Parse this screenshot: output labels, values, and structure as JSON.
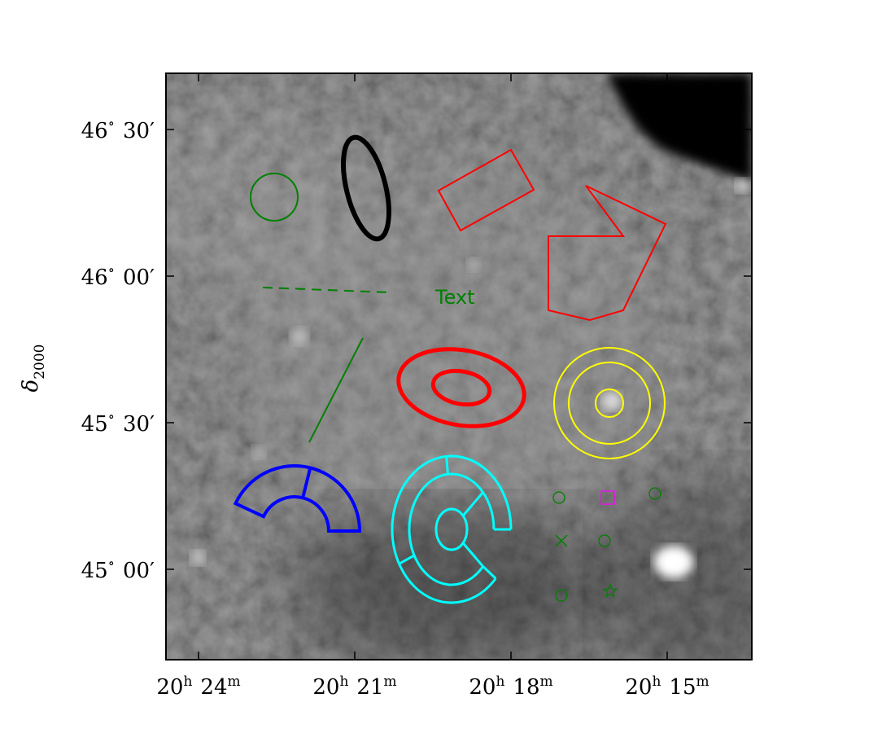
{
  "chart_data": {
    "type": "image",
    "title": "",
    "xlabel": "",
    "ylabel_symbol": "δ",
    "ylabel_sub": "2000",
    "colormap": "gray",
    "x_ticks": [
      {
        "h": "20",
        "hu": "h",
        "m": "24",
        "mu": "m"
      },
      {
        "h": "20",
        "hu": "h",
        "m": "21",
        "mu": "m"
      },
      {
        "h": "20",
        "hu": "h",
        "m": "18",
        "mu": "m"
      },
      {
        "h": "20",
        "hu": "h",
        "m": "15",
        "mu": "m"
      }
    ],
    "y_ticks": [
      {
        "deg": "46",
        "min": "30"
      },
      {
        "deg": "46",
        "min": "00"
      },
      {
        "deg": "45",
        "min": "30"
      },
      {
        "deg": "45",
        "min": "00"
      }
    ],
    "regions": {
      "circle_color": "#008000",
      "ellipse_color": "#000000",
      "box_color": "#ff0000",
      "polygon_color": "#ff0000",
      "line_color": "#008000",
      "text_label": "Text",
      "text_color": "#008000",
      "ellipse_annulus_color": "#ff0000",
      "annulus_color": "#ffff00",
      "panda_color": "#0000ff",
      "epanda_color": "#00ffff",
      "points": [
        {
          "shape": "circle",
          "color": "#008000"
        },
        {
          "shape": "box",
          "color": "#ff00ff"
        },
        {
          "shape": "circle",
          "color": "#008000"
        },
        {
          "shape": "x",
          "color": "#008000"
        },
        {
          "shape": "circle",
          "color": "#008000"
        },
        {
          "shape": "circle",
          "color": "#008000"
        },
        {
          "shape": "star",
          "color": "#008000"
        }
      ]
    }
  }
}
